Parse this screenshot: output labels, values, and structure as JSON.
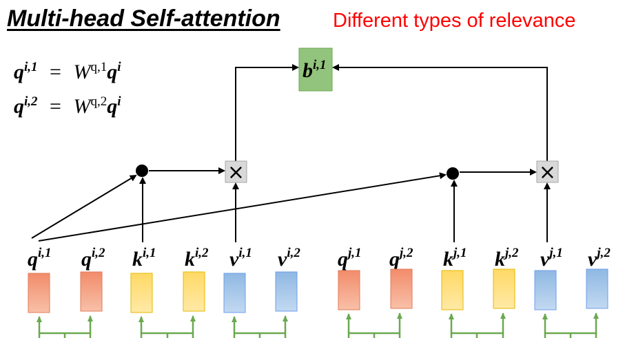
{
  "title": "Multi-head Self-attention",
  "subtitle": "Different types of relevance",
  "equations": [
    {
      "lhs_base": "q",
      "lhs_sup": "i,1",
      "eq": "=",
      "w_base": "W",
      "w_sup": "q,1",
      "rhs_base": "q",
      "rhs_sup": "i"
    },
    {
      "lhs_base": "q",
      "lhs_sup": "i,2",
      "eq": "=",
      "w_base": "W",
      "w_sup": "q,2",
      "rhs_base": "q",
      "rhs_sup": "i"
    }
  ],
  "output": {
    "base": "b",
    "sup": "i,1",
    "color": "#93c47d"
  },
  "multiply_symbol": "×",
  "vector_labels": [
    {
      "base": "q",
      "sup": "i,1"
    },
    {
      "base": "q",
      "sup": "i,2"
    },
    {
      "base": "k",
      "sup": "i,1"
    },
    {
      "base": "k",
      "sup": "i,2"
    },
    {
      "base": "v",
      "sup": "i,1"
    },
    {
      "base": "v",
      "sup": "i,2"
    },
    {
      "base": "q",
      "sup": "j,1"
    },
    {
      "base": "q",
      "sup": "j,2"
    },
    {
      "base": "k",
      "sup": "j,1"
    },
    {
      "base": "k",
      "sup": "j,2"
    },
    {
      "base": "v",
      "sup": "j,1"
    },
    {
      "base": "v",
      "sup": "j,2"
    }
  ],
  "colors": {
    "query": "#f4a582",
    "key": "#ffd966",
    "value": "#9fc5e8",
    "connector": "#6aa84f",
    "title_red": "#ff0000"
  }
}
